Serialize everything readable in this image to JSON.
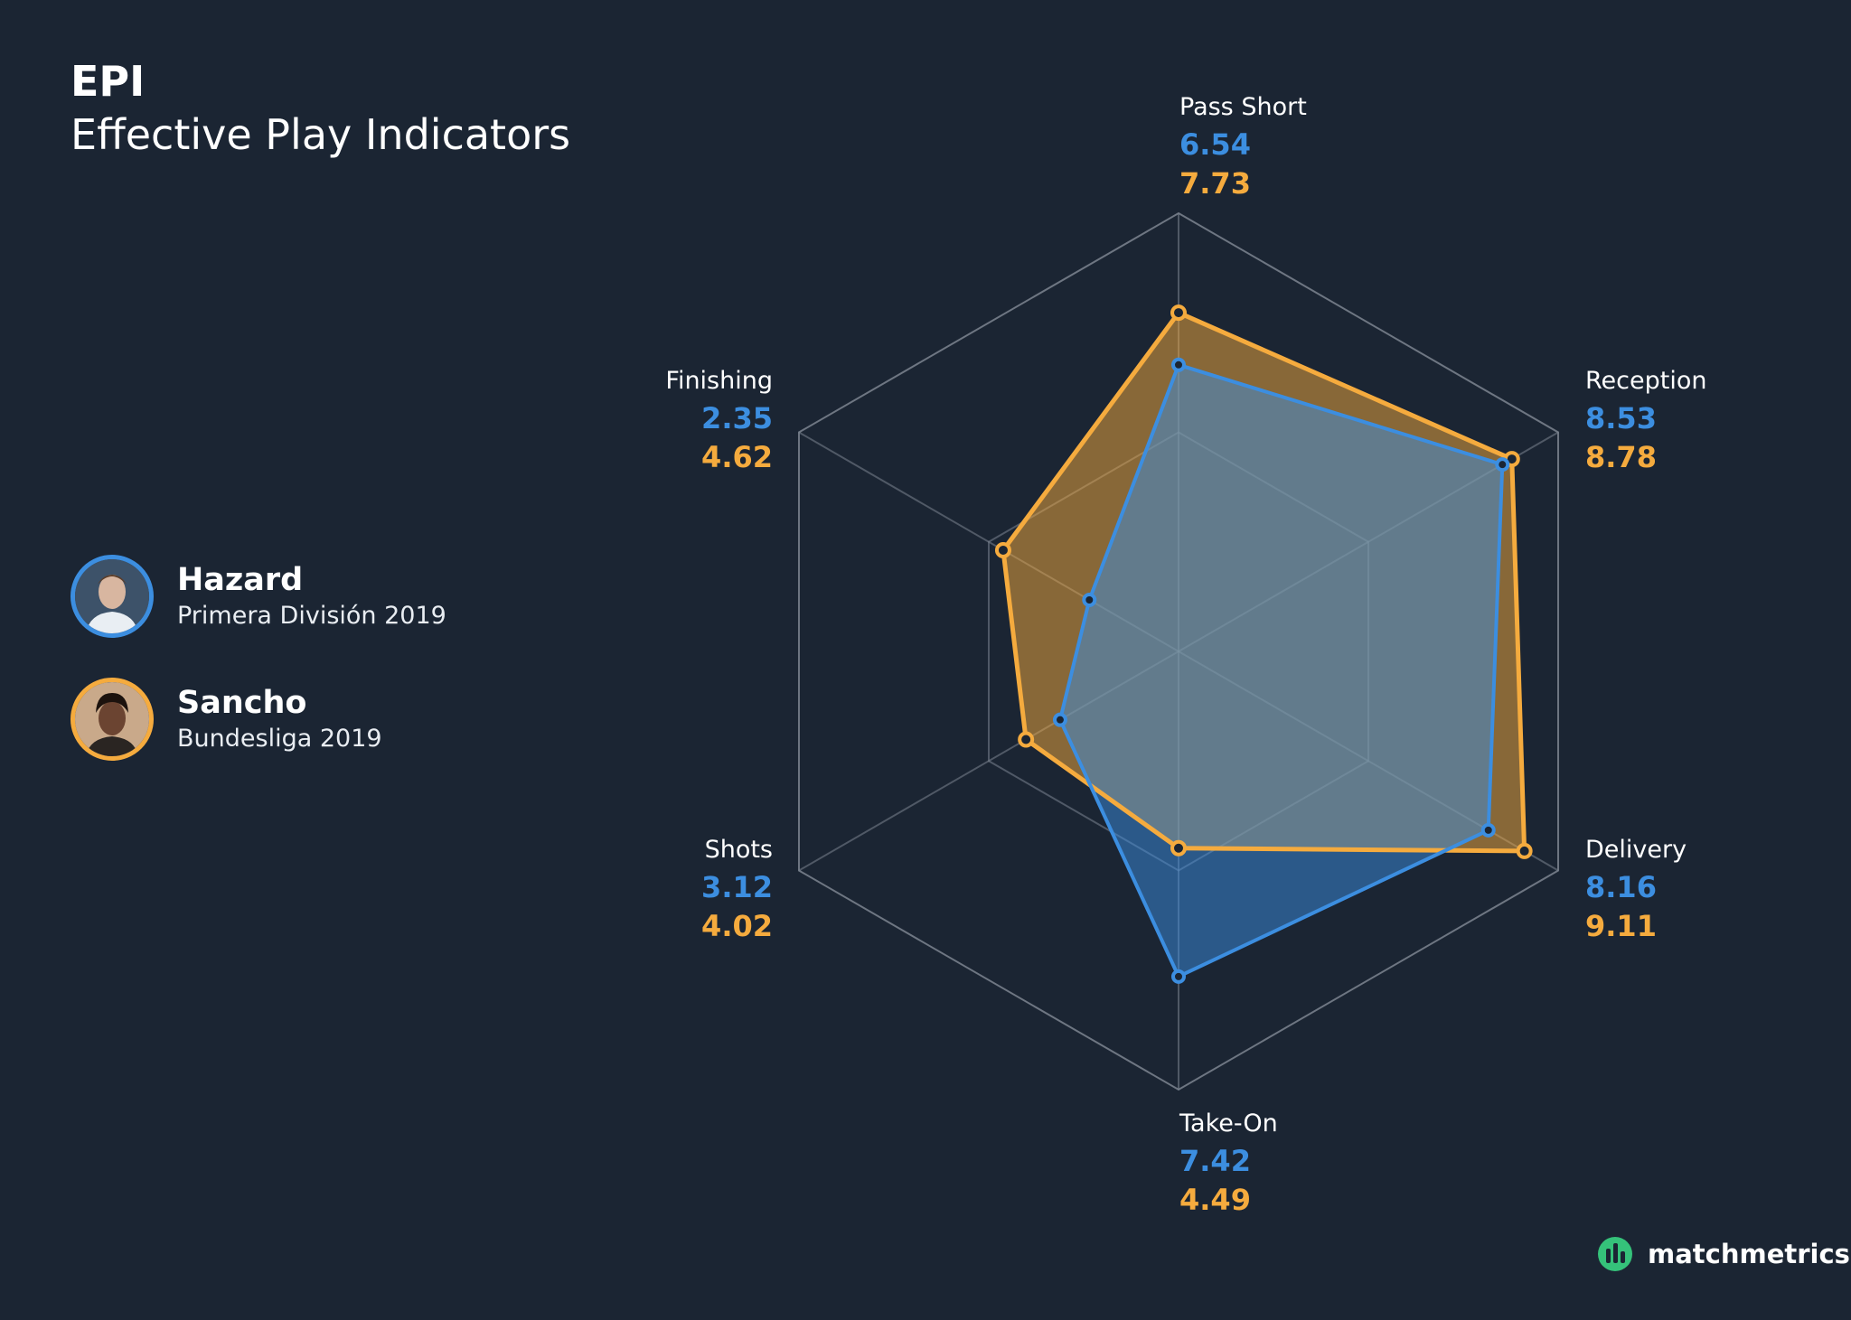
{
  "header": {
    "title": "EPI",
    "subtitle": "Effective Play Indicators"
  },
  "colors": {
    "background": "#1b2533",
    "series_a": "#3c8ee0",
    "series_b": "#f5ab3e",
    "grid": "#7c8591",
    "brand": "#35c27a"
  },
  "legend": [
    {
      "name": "Hazard",
      "competition": "Primera División 2019",
      "color": "#3c8ee0",
      "icon": "player-avatar-icon"
    },
    {
      "name": "Sancho",
      "competition": "Bundesliga 2019",
      "color": "#f5ab3e",
      "icon": "player-avatar-icon"
    }
  ],
  "chart_data": {
    "type": "radar",
    "axes": [
      "Pass Short",
      "Reception",
      "Delivery",
      "Take-On",
      "Shots",
      "Finishing"
    ],
    "range": [
      0,
      10
    ],
    "grid_levels": [
      5,
      10
    ],
    "grid": true,
    "series": [
      {
        "name": "Hazard",
        "values": [
          6.54,
          8.53,
          8.16,
          7.42,
          3.12,
          2.35
        ]
      },
      {
        "name": "Sancho",
        "values": [
          7.73,
          8.78,
          9.11,
          4.49,
          4.02,
          4.62
        ]
      }
    ],
    "legend_placement": "left"
  },
  "brand": {
    "name": "matchmetrics",
    "icon": "matchmetrics-logo-icon"
  }
}
